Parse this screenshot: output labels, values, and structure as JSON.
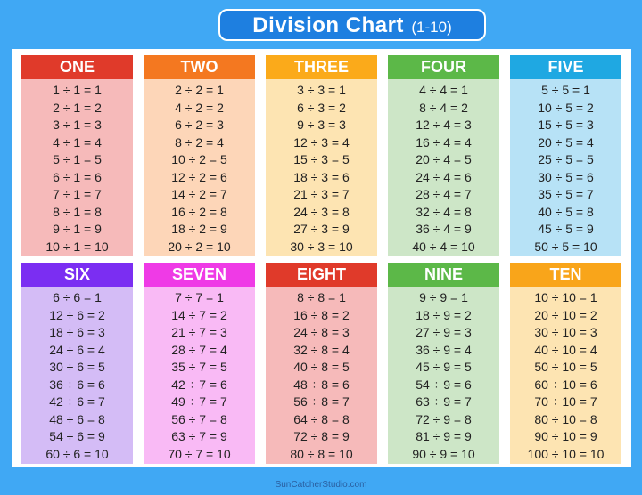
{
  "title": {
    "main": "Division Chart",
    "sub": "(1-10)"
  },
  "footer": "SunCatcherStudio.com",
  "tables": [
    {
      "label": "ONE",
      "header_color": "#e03a2a",
      "body_color": "#f6baba",
      "rows": [
        "1 ÷ 1 = 1",
        "2 ÷ 1 = 2",
        "3 ÷ 1 = 3",
        "4 ÷ 1 = 4",
        "5 ÷ 1 = 5",
        "6 ÷ 1 = 6",
        "7 ÷ 1 = 7",
        "8 ÷ 1 = 8",
        "9 ÷ 1 = 9",
        "10 ÷ 1 = 10"
      ]
    },
    {
      "label": "TWO",
      "header_color": "#f47820",
      "body_color": "#fdd6b8",
      "rows": [
        "2 ÷ 2 = 1",
        "4 ÷ 2 = 2",
        "6 ÷ 2 = 3",
        "8 ÷ 2 = 4",
        "10 ÷ 2 = 5",
        "12 ÷ 2 = 6",
        "14 ÷ 2 = 7",
        "16 ÷ 2 = 8",
        "18 ÷ 2 = 9",
        "20 ÷ 2 = 10"
      ]
    },
    {
      "label": "THREE",
      "header_color": "#fbaa1a",
      "body_color": "#fde4b2",
      "rows": [
        "3 ÷ 3 = 1",
        "6 ÷ 3 = 2",
        "9 ÷ 3 = 3",
        "12 ÷ 3 = 4",
        "15 ÷ 3 = 5",
        "18 ÷ 3 = 6",
        "21 ÷ 3 = 7",
        "24 ÷ 3 = 8",
        "27 ÷ 3 = 9",
        "30 ÷ 3 = 10"
      ]
    },
    {
      "label": "FOUR",
      "header_color": "#5cb848",
      "body_color": "#cde6c7",
      "rows": [
        "4 ÷ 4 = 1",
        "8 ÷ 4 = 2",
        "12 ÷ 4 = 3",
        "16 ÷ 4 = 4",
        "20 ÷ 4 = 5",
        "24 ÷ 4 = 6",
        "28 ÷ 4 = 7",
        "32 ÷ 4 = 8",
        "36 ÷ 4 = 9",
        "40 ÷ 4 = 10"
      ]
    },
    {
      "label": "FIVE",
      "header_color": "#1fa8e2",
      "body_color": "#b7e2f6",
      "rows": [
        "5 ÷ 5 = 1",
        "10 ÷ 5 = 2",
        "15 ÷ 5 = 3",
        "20 ÷ 5 = 4",
        "25 ÷ 5 = 5",
        "30 ÷ 5 = 6",
        "35 ÷ 5 = 7",
        "40 ÷ 5 = 8",
        "45 ÷ 5 = 9",
        "50 ÷ 5 = 10"
      ]
    },
    {
      "label": "SIX",
      "header_color": "#7b2ef2",
      "body_color": "#d4bcf6",
      "rows": [
        "6 ÷ 6 = 1",
        "12 ÷ 6 = 2",
        "18 ÷ 6 = 3",
        "24 ÷ 6 = 4",
        "30 ÷ 6 = 5",
        "36 ÷ 6 = 6",
        "42 ÷ 6 = 7",
        "48 ÷ 6 = 8",
        "54 ÷ 6 = 9",
        "60 ÷ 6 = 10"
      ]
    },
    {
      "label": "SEVEN",
      "header_color": "#ef3ae6",
      "body_color": "#f9baf5",
      "rows": [
        "7 ÷ 7 = 1",
        "14 ÷ 7 = 2",
        "21 ÷ 7 = 3",
        "28 ÷ 7 = 4",
        "35 ÷ 7 = 5",
        "42 ÷ 7 = 6",
        "49 ÷ 7 = 7",
        "56 ÷ 7 = 8",
        "63 ÷ 7 = 9",
        "70 ÷ 7 = 10"
      ]
    },
    {
      "label": "EIGHT",
      "header_color": "#e03a2a",
      "body_color": "#f6baba",
      "rows": [
        "8 ÷ 8 = 1",
        "16 ÷ 8 = 2",
        "24 ÷ 8 = 3",
        "32 ÷ 8 = 4",
        "40 ÷ 8 = 5",
        "48 ÷ 8 = 6",
        "56 ÷ 8 = 7",
        "64 ÷ 8 = 8",
        "72 ÷ 8 = 9",
        "80 ÷ 8 = 10"
      ]
    },
    {
      "label": "NINE",
      "header_color": "#5cb848",
      "body_color": "#cde6c7",
      "rows": [
        "9 ÷ 9 = 1",
        "18 ÷ 9 = 2",
        "27 ÷ 9 = 3",
        "36 ÷ 9 = 4",
        "45 ÷ 9 = 5",
        "54 ÷ 9 = 6",
        "63 ÷ 9 = 7",
        "72 ÷ 9 = 8",
        "81 ÷ 9 = 9",
        "90 ÷ 9 = 10"
      ]
    },
    {
      "label": "TEN",
      "header_color": "#f9a51a",
      "body_color": "#fde4b2",
      "rows": [
        "10 ÷ 10 = 1",
        "20 ÷ 10 = 2",
        "30 ÷ 10 = 3",
        "40 ÷ 10 = 4",
        "50 ÷ 10 = 5",
        "60 ÷ 10 = 6",
        "70 ÷ 10 = 7",
        "80 ÷ 10 = 8",
        "90 ÷ 10 = 9",
        "100 ÷ 10 = 10"
      ]
    }
  ]
}
